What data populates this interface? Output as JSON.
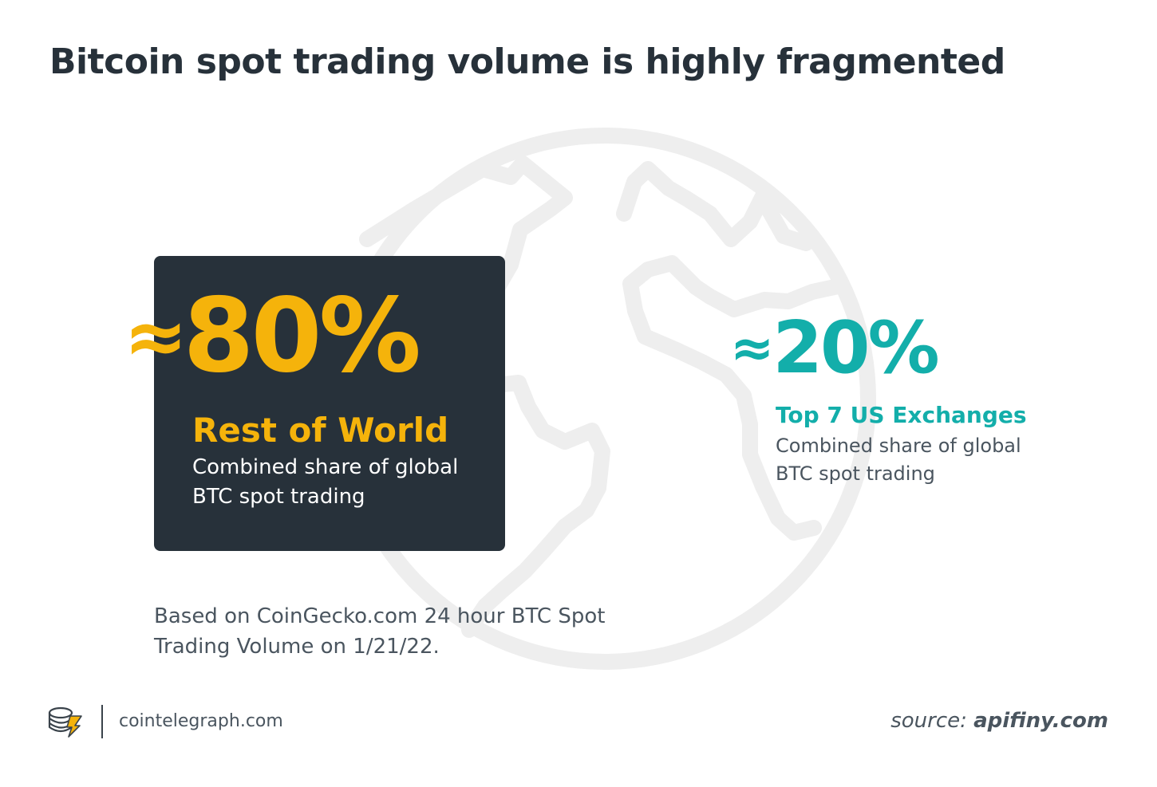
{
  "title": "Bitcoin spot trading volume is highly fragmented",
  "chart_data": {
    "type": "pie",
    "categories": [
      "Rest of World",
      "Top 7 US Exchanges"
    ],
    "values": [
      80,
      20
    ],
    "approx_symbol": "≈",
    "value_labels": [
      "80%",
      "20%"
    ],
    "descriptions": [
      "Combined share of global BTC spot trading",
      "Combined share of global BTC spot trading"
    ],
    "colors": [
      "#f5b30b",
      "#13aeaa"
    ]
  },
  "note": "Based on CoinGecko.com 24 hour BTC Spot Trading Volume on 1/21/22.",
  "footer": {
    "site": "cointelegraph.com",
    "source_prefix": "source:",
    "source_name": "apifiny.com"
  },
  "colors": {
    "dark_panel": "#27313a",
    "globe": "#eeeeee",
    "text_muted": "#4a555f"
  },
  "icons": [
    "globe-icon",
    "cointelegraph-logo-icon"
  ]
}
